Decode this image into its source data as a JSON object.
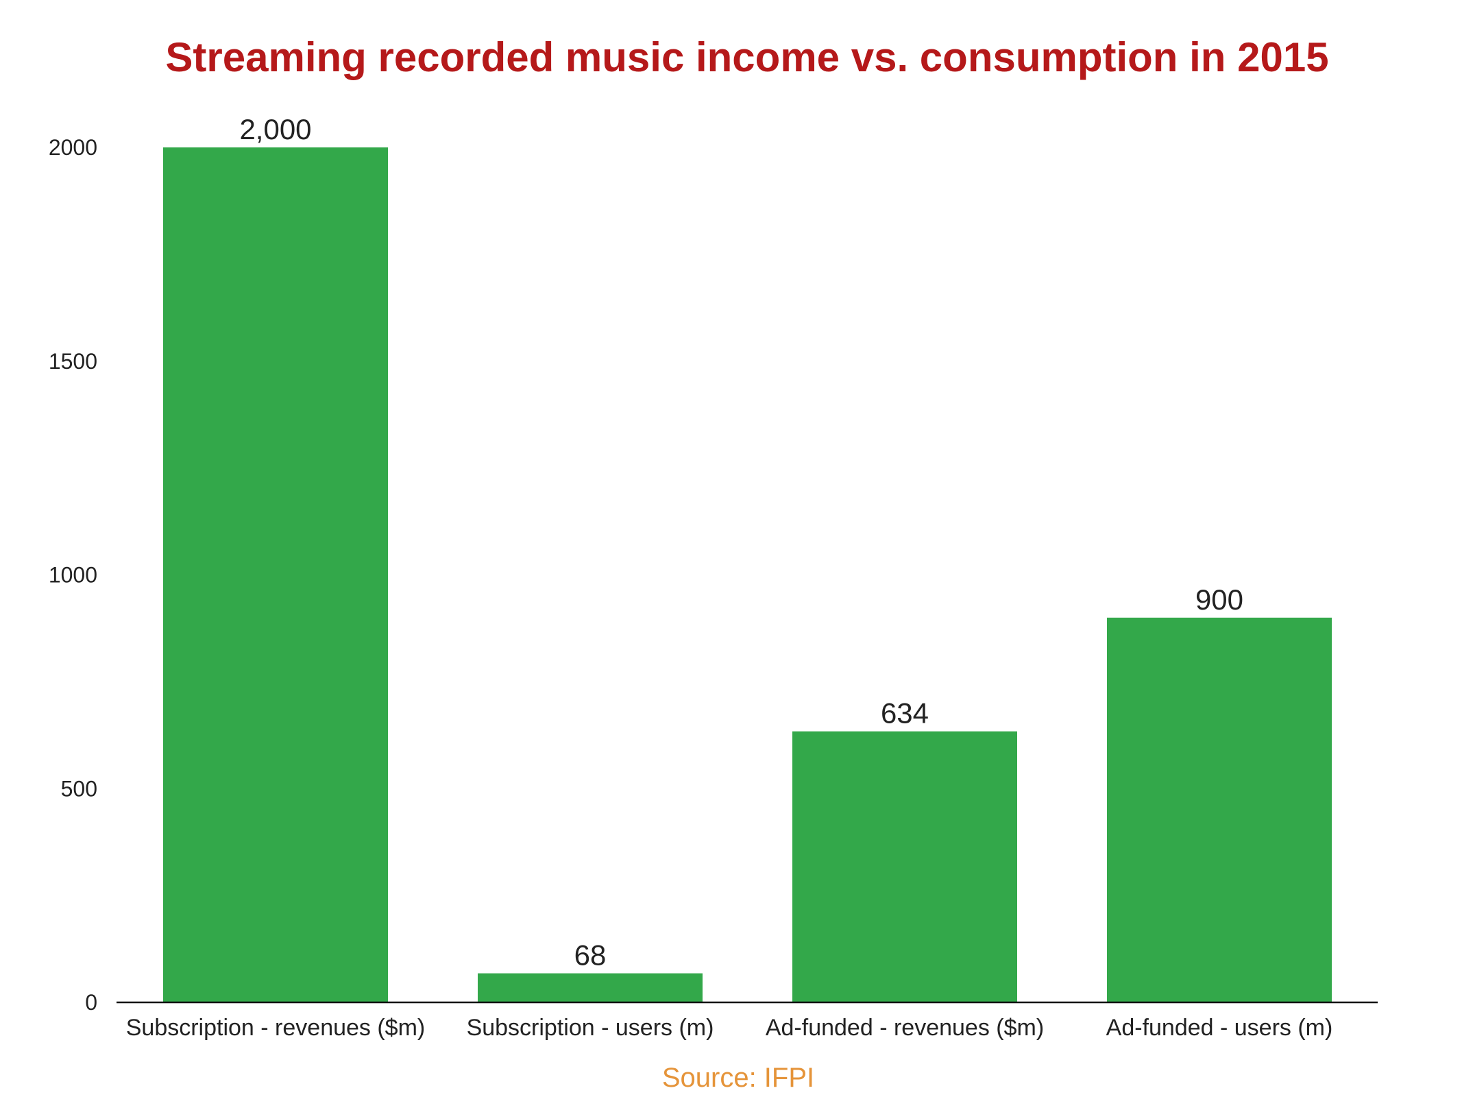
{
  "colors": {
    "title": "#b5191a",
    "bar": "#33a84a",
    "axis": "#111111",
    "source": "#e5943a"
  },
  "source_label": "Source: IFPI",
  "chart_data": {
    "type": "bar",
    "title": "Streaming recorded music income vs. consumption in 2015",
    "xlabel": "",
    "ylabel": "",
    "categories": [
      "Subscription - revenues ($m)",
      "Subscription - users (m)",
      "Ad-funded - revenues ($m)",
      "Ad-funded - users (m)"
    ],
    "values": [
      2000,
      68,
      634,
      900
    ],
    "data_labels": [
      "2,000",
      "68",
      "634",
      "900"
    ],
    "ylim": [
      0,
      2000
    ],
    "yticks": [
      0,
      500,
      1000,
      1500,
      2000
    ],
    "grid": false,
    "legend": "none"
  }
}
